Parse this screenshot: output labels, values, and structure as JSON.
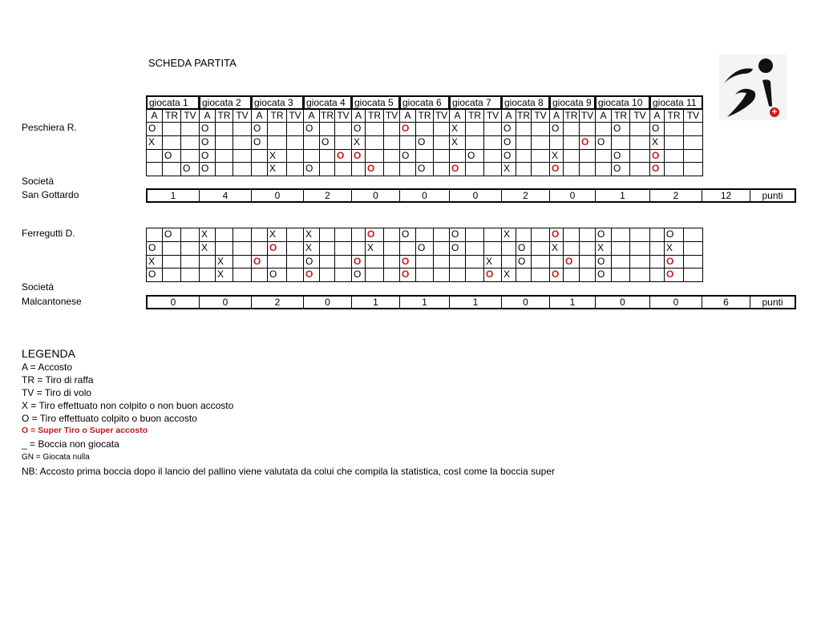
{
  "title": "SCHEDA PARTITA",
  "logo": {
    "icon": "bocce-player-logo",
    "accent": "#d01818"
  },
  "colors": {
    "super": "#d01818"
  },
  "giocate": [
    "giocata 1",
    "giocata 2",
    "giocata 3",
    "giocata 4",
    "giocata 5",
    "giocata 6",
    "giocata 7",
    "giocata 8",
    "giocata 9",
    "giocata 10",
    "giocata 11"
  ],
  "subheaders": [
    "A",
    "TR",
    "TV"
  ],
  "players": [
    {
      "name": "Peschiera R.",
      "societa_label": "Società",
      "societa": "San Gottardo",
      "rows": [
        {
          "cells": [
            "O",
            "",
            "",
            "O",
            "",
            "",
            "O",
            "",
            "",
            "O",
            "",
            "",
            "O",
            "",
            "",
            "O",
            "",
            "",
            "X",
            "",
            "",
            "O",
            "",
            "",
            "O",
            "",
            "",
            "",
            "O",
            "",
            "O",
            "",
            ""
          ],
          "super": [
            15
          ]
        },
        {
          "cells": [
            "X",
            "",
            "",
            "O",
            "",
            "",
            "O",
            "",
            "",
            "",
            "O",
            "",
            "X",
            "",
            "",
            "",
            "O",
            "",
            "X",
            "",
            "",
            "O",
            "",
            "",
            "",
            "",
            "O",
            "O",
            "",
            "",
            "X",
            "",
            ""
          ],
          "super": [
            26
          ]
        },
        {
          "cells": [
            "",
            "O",
            "",
            "O",
            "",
            "",
            "",
            "X",
            "",
            "",
            "",
            "O",
            "O",
            "",
            "",
            "O",
            "",
            "",
            "",
            "O",
            "",
            "O",
            "",
            "",
            "X",
            "",
            "",
            "",
            "O",
            "",
            "O",
            "",
            ""
          ],
          "super": [
            11,
            12,
            30
          ]
        },
        {
          "cells": [
            "",
            "",
            "O",
            "O",
            "",
            "",
            "",
            "X",
            "",
            "O",
            "",
            "",
            "",
            "O",
            "",
            "",
            "O",
            "",
            "O",
            "",
            "",
            "X",
            "",
            "",
            "O",
            "",
            "",
            "",
            "O",
            "",
            "O",
            "",
            ""
          ],
          "super": [
            13,
            18,
            24,
            30
          ]
        }
      ],
      "scores": [
        "1",
        "4",
        "0",
        "2",
        "0",
        "0",
        "0",
        "2",
        "0",
        "1",
        "2"
      ],
      "total": "12",
      "total_label": "punti"
    },
    {
      "name": "Ferregutti D.",
      "societa_label": "Società",
      "societa": "Malcantonese",
      "rows": [
        {
          "cells": [
            "",
            "O",
            "",
            "X",
            "",
            "",
            "",
            "X",
            "",
            "X",
            "",
            "",
            "",
            "O",
            "",
            "O",
            "",
            "",
            "O",
            "",
            "",
            "X",
            "",
            "",
            "O",
            "",
            "",
            "O",
            "",
            "",
            "",
            "O",
            ""
          ],
          "super": [
            13,
            24
          ]
        },
        {
          "cells": [
            "O",
            "",
            "",
            "X",
            "",
            "",
            "",
            "O",
            "",
            "X",
            "",
            "",
            "",
            "X",
            "",
            "",
            "O",
            "",
            "O",
            "",
            "",
            "",
            "O",
            "",
            "X",
            "",
            "",
            "X",
            "",
            "",
            "",
            "X",
            ""
          ],
          "super": [
            7
          ]
        },
        {
          "cells": [
            "X",
            "",
            "",
            "",
            "X",
            "",
            "O",
            "",
            "",
            "O",
            "",
            "",
            "O",
            "",
            "",
            "O",
            "",
            "",
            "",
            "",
            "X",
            "",
            "O",
            "",
            "",
            "O",
            "",
            "O",
            "",
            "",
            "",
            "O",
            ""
          ],
          "super": [
            6,
            12,
            15,
            25,
            31
          ]
        },
        {
          "cells": [
            "O",
            "",
            "",
            "",
            "X",
            "",
            "",
            "O",
            "",
            "O",
            "",
            "",
            "O",
            "",
            "",
            "O",
            "",
            "",
            "",
            "",
            "O",
            "X",
            "",
            "",
            "O",
            "",
            "",
            "O",
            "",
            "",
            "",
            "O",
            ""
          ],
          "super": [
            9,
            15,
            20,
            24,
            31
          ]
        }
      ],
      "scores": [
        "0",
        "0",
        "2",
        "0",
        "1",
        "1",
        "1",
        "0",
        "1",
        "0",
        "0"
      ],
      "total": "6",
      "total_label": "punti"
    }
  ],
  "legend": {
    "title": "LEGENDA",
    "lines": [
      "A = Accosto",
      "TR = Tiro di raffa",
      "TV = Tiro di volo",
      "X = Tiro effettuato non colpito o non buon accosto",
      "O = Tiro effettuato colpito o buon accosto"
    ],
    "super_line": "O = Super Tiro o Super accosto",
    "not_played": "_ = Boccia non giocata",
    "null_play": "GN = Giocata nulla",
    "note": "NB: Accosto prima boccia dopo il lancio del pallino viene valutata da colui che compila la statistica, cosI come la boccia super"
  }
}
